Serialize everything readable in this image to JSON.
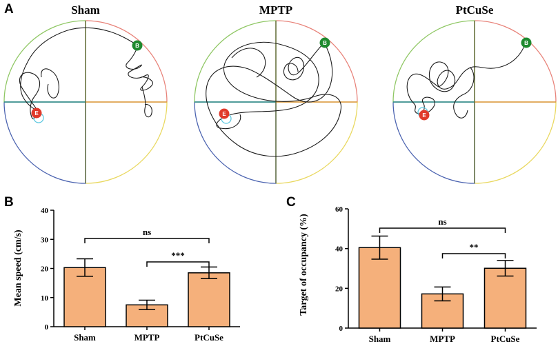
{
  "panel_a": {
    "letter": "A",
    "maps": [
      {
        "title": "Sham",
        "start_label": "B",
        "end_label": "E"
      },
      {
        "title": "MPTP",
        "start_label": "B",
        "end_label": "E"
      },
      {
        "title": "PtCuSe",
        "start_label": "B",
        "end_label": "E"
      }
    ],
    "quadrant_colors": [
      "#e8837a",
      "#e9d85f",
      "#4b63b0",
      "#8fc764"
    ],
    "platform_color": "#5ec8e0",
    "start_color": "#1e8a2e",
    "end_color": "#e03a2b"
  },
  "bar_color": "#f5b07b",
  "chart_data": [
    {
      "panel": "B",
      "type": "bar",
      "title": "",
      "xlabel": "",
      "ylabel": "Mean speed (cm/s)",
      "categories": [
        "Sham",
        "MPTP",
        "PtCuSe"
      ],
      "values": [
        20.3,
        7.5,
        18.5
      ],
      "errors": [
        3.0,
        1.6,
        2.0
      ],
      "ylim": [
        0,
        40
      ],
      "yticks": [
        "0",
        "10",
        "20",
        "30",
        "40"
      ],
      "comparisons": [
        {
          "from": "Sham",
          "to": "PtCuSe",
          "label": "ns"
        },
        {
          "from": "MPTP",
          "to": "PtCuSe",
          "label": "***"
        }
      ]
    },
    {
      "panel": "C",
      "type": "bar",
      "title": "",
      "xlabel": "",
      "ylabel": "Target of occupancy (%)",
      "categories": [
        "Sham",
        "MPTP",
        "PtCuSe"
      ],
      "values": [
        40.5,
        17.2,
        30.1
      ],
      "errors": [
        5.8,
        3.5,
        3.9
      ],
      "ylim": [
        0,
        60
      ],
      "yticks": [
        "0",
        "20",
        "40",
        "60"
      ],
      "comparisons": [
        {
          "from": "Sham",
          "to": "PtCuSe",
          "label": "ns"
        },
        {
          "from": "MPTP",
          "to": "PtCuSe",
          "label": "**"
        }
      ]
    }
  ]
}
